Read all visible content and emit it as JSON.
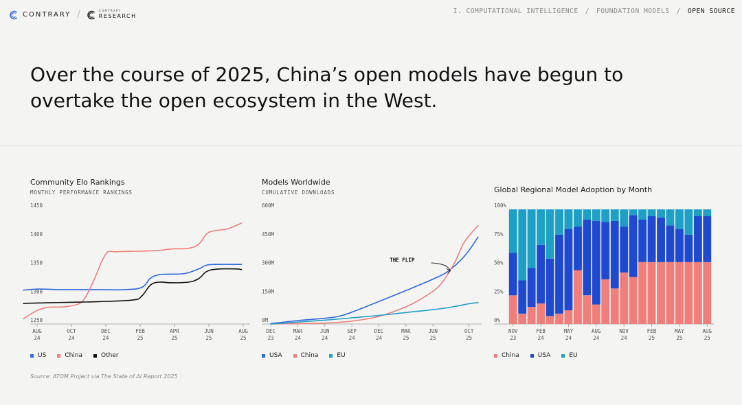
{
  "header": {
    "brand": "CONTRARY",
    "sub_brand_small": "CONTRARY",
    "sub_brand": "RESEARCH",
    "breadcrumbs": [
      "I. COMPUTATIONAL INTELLIGENCE",
      "FOUNDATION MODELS",
      "OPEN SOURCE"
    ]
  },
  "headline": "Over the course of 2025, China’s open models have begun to overtake the open ecosystem in the West.",
  "colors": {
    "blue": "#2f68df",
    "red": "#f07e7b",
    "black": "#111111",
    "teal": "#1ea0c6",
    "navy": "#1f49cf"
  },
  "chart_data": [
    {
      "type": "line",
      "title": "Community Elo Rankings",
      "subtitle": "MONTHLY PERFORMANCE RANKINGS",
      "ylim": [
        1250,
        1450
      ],
      "yticks": [
        "1450",
        "1400",
        "1350",
        "1300",
        "1250"
      ],
      "xticks": [
        "AUG 24",
        "OCT 24",
        "DEC 24",
        "FEB 25",
        "APR 25",
        "JUN 25",
        "AUG 25"
      ],
      "x_months": [
        0,
        12.8
      ],
      "series": [
        {
          "name": "US",
          "color": "#2f68df",
          "points": [
            [
              -0.4,
              1309
            ],
            [
              0.5,
              1311
            ],
            [
              1.5,
              1310
            ],
            [
              2.5,
              1310
            ],
            [
              4,
              1310
            ],
            [
              5.5,
              1310
            ],
            [
              6.5,
              1314
            ],
            [
              7,
              1330
            ],
            [
              7.5,
              1336
            ],
            [
              8,
              1337
            ],
            [
              9,
              1338
            ],
            [
              9.8,
              1346
            ],
            [
              10.3,
              1353
            ],
            [
              11,
              1354
            ],
            [
              12,
              1354
            ],
            [
              12.3,
              1354
            ]
          ]
        },
        {
          "name": "China",
          "color": "#f07e7b",
          "points": [
            [
              -0.4,
              1259
            ],
            [
              0.3,
              1272
            ],
            [
              1,
              1279
            ],
            [
              2,
              1280
            ],
            [
              2.8,
              1285
            ],
            [
              3.2,
              1296
            ],
            [
              3.7,
              1326
            ],
            [
              4.4,
              1372
            ],
            [
              5,
              1376
            ],
            [
              6.3,
              1377
            ],
            [
              7.3,
              1378
            ],
            [
              8.3,
              1381
            ],
            [
              9.2,
              1382
            ],
            [
              9.8,
              1389
            ],
            [
              10.3,
              1408
            ],
            [
              10.8,
              1413
            ],
            [
              11.5,
              1416
            ],
            [
              12.3,
              1426
            ]
          ]
        },
        {
          "name": "Other",
          "color": "#111111",
          "points": [
            [
              -0.4,
              1286
            ],
            [
              1,
              1287
            ],
            [
              2.5,
              1288
            ],
            [
              4,
              1289
            ],
            [
              6,
              1292
            ],
            [
              6.5,
              1299
            ],
            [
              7,
              1318
            ],
            [
              7.5,
              1323
            ],
            [
              8.2,
              1322
            ],
            [
              9.2,
              1323
            ],
            [
              9.8,
              1329
            ],
            [
              10.3,
              1342
            ],
            [
              11,
              1346
            ],
            [
              12,
              1346
            ],
            [
              12.3,
              1345
            ]
          ]
        }
      ]
    },
    {
      "type": "line",
      "title": "Models Worldwide",
      "subtitle": "CUMULATIVE DOWNLOADS",
      "ylim": [
        0,
        600
      ],
      "yticks": [
        "600M",
        "450M",
        "300M",
        "150M",
        "0M"
      ],
      "xticks": [
        "DEC 23",
        "MAR 24",
        "JUN 24",
        "SEP 24",
        "DEC 24",
        "MAR 25",
        "JUN 25",
        "OCT 25"
      ],
      "x_months": [
        -1,
        23.4
      ],
      "annotation": "THE FLIP",
      "series": [
        {
          "name": "USA",
          "color": "#2f68df",
          "points": [
            [
              0,
              2
            ],
            [
              3,
              18
            ],
            [
              6,
              30
            ],
            [
              7.5,
              40
            ],
            [
              9,
              62
            ],
            [
              12,
              118
            ],
            [
              15,
              175
            ],
            [
              18,
              235
            ],
            [
              19.5,
              270
            ],
            [
              21,
              330
            ],
            [
              22,
              385
            ],
            [
              23,
              455
            ]
          ]
        },
        {
          "name": "China",
          "color": "#f07e7b",
          "points": [
            [
              0,
              0
            ],
            [
              3,
              2
            ],
            [
              6,
              5
            ],
            [
              9,
              15
            ],
            [
              12,
              40
            ],
            [
              15,
              90
            ],
            [
              17,
              140
            ],
            [
              18.5,
              190
            ],
            [
              19.5,
              250
            ],
            [
              20.5,
              330
            ],
            [
              21.5,
              430
            ],
            [
              23,
              515
            ]
          ]
        },
        {
          "name": "EU",
          "color": "#1ea0c6",
          "points": [
            [
              0,
              0
            ],
            [
              3,
              10
            ],
            [
              6,
              20
            ],
            [
              9,
              32
            ],
            [
              12,
              45
            ],
            [
              15,
              60
            ],
            [
              18,
              75
            ],
            [
              20,
              88
            ],
            [
              22,
              106
            ],
            [
              23,
              112
            ]
          ]
        }
      ]
    },
    {
      "type": "bar",
      "stacked": true,
      "title": "Global Regional Model Adoption by Month",
      "ylim": [
        0,
        100
      ],
      "yticks": [
        "100%",
        "75%",
        "50%",
        "25%",
        "0%"
      ],
      "xticks": [
        "NOV 23",
        "FEB 24",
        "MAY 24",
        "AUG 24",
        "NOV 24",
        "FEB 25",
        "MAY 25",
        "AUG 25"
      ],
      "series": [
        {
          "name": "China",
          "color": "#f07e7b",
          "values": [
            25,
            9,
            15,
            18,
            7,
            9,
            12,
            47,
            25,
            17,
            39,
            31,
            45,
            41,
            54,
            54,
            54,
            54,
            54,
            54,
            54,
            54
          ]
        },
        {
          "name": "USA",
          "color": "#1f49cf",
          "values": [
            37,
            29,
            34,
            51,
            50,
            69,
            71,
            38,
            66,
            73,
            50,
            59,
            40,
            54,
            37,
            40,
            39,
            32,
            29,
            24,
            40,
            40
          ]
        },
        {
          "name": "EU",
          "color": "#1ea0c6",
          "values": [
            38,
            62,
            51,
            31,
            43,
            22,
            17,
            15,
            9,
            10,
            11,
            10,
            15,
            5,
            9,
            6,
            7,
            14,
            17,
            22,
            6,
            6
          ]
        }
      ]
    }
  ],
  "source": "Source: ATOM Project via The State of AI Report 2025"
}
